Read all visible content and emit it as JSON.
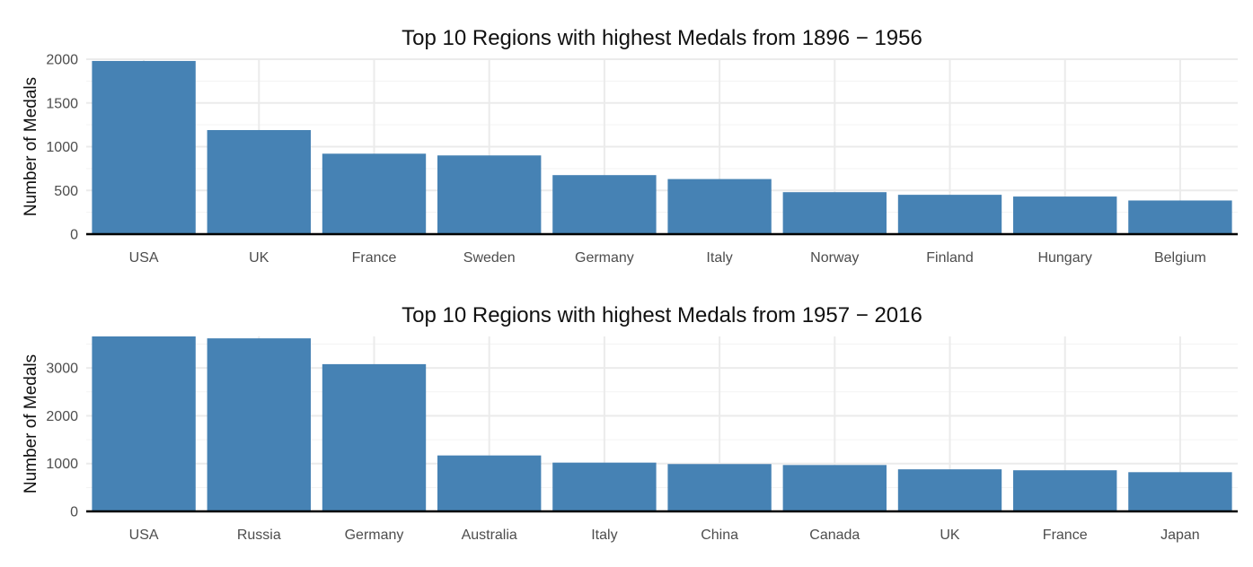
{
  "chart_data": [
    {
      "type": "bar",
      "title": "Top 10 Regions with highest Medals from 1896 − 1956",
      "xlabel": "",
      "ylabel": "Number of Medals",
      "categories": [
        "USA",
        "UK",
        "France",
        "Sweden",
        "Germany",
        "Italy",
        "Norway",
        "Finland",
        "Hungary",
        "Belgium"
      ],
      "values": [
        1980,
        1190,
        920,
        900,
        675,
        630,
        480,
        450,
        430,
        385
      ],
      "ylim": [
        0,
        2000
      ],
      "yticks": [
        0,
        500,
        1000,
        1500,
        2000
      ],
      "grid": true,
      "bar_color": "#4682b4"
    },
    {
      "type": "bar",
      "title": "Top 10 Regions with highest Medals from 1957 − 2016",
      "xlabel": "",
      "ylabel": "Number of Medals",
      "categories": [
        "USA",
        "Russia",
        "Germany",
        "Australia",
        "Italy",
        "China",
        "Canada",
        "UK",
        "France",
        "Japan"
      ],
      "values": [
        3660,
        3620,
        3080,
        1170,
        1020,
        990,
        970,
        880,
        860,
        820
      ],
      "ylim": [
        0,
        3660
      ],
      "yticks": [
        0,
        1000,
        2000,
        3000
      ],
      "grid": true,
      "bar_color": "#4682b4"
    }
  ]
}
